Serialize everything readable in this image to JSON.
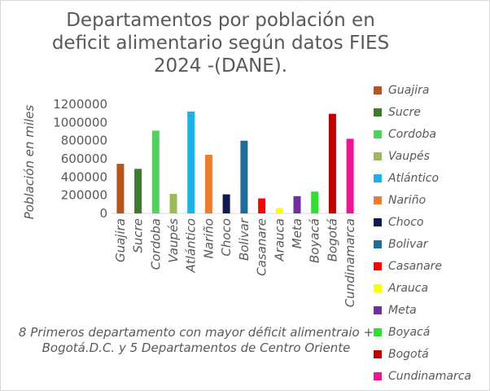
{
  "chart_data": {
    "type": "bar",
    "title": "Departamentos por población en deficit alimentario según datos FIES 2024 -(DANE).",
    "ylabel": "Población en miles",
    "xlabel": "",
    "ylim": [
      0,
      1200000
    ],
    "yticks": [
      0,
      200000,
      400000,
      600000,
      800000,
      1000000,
      1200000
    ],
    "ytick_labels": [
      "0",
      "200000",
      "400000",
      "600000",
      "800000",
      "1000000",
      "1200000"
    ],
    "grid": false,
    "legend_position": "right",
    "categories": [
      "Guajira",
      "Sucre",
      "Cordoba",
      "Vaupés",
      "Atlántico",
      "Nariño",
      "Choco",
      "Bolivar",
      "Casanare",
      "Arauca",
      "Meta",
      "Boyacá",
      "Bogotá",
      "Cundinamarca"
    ],
    "values": [
      545000,
      490000,
      910000,
      215000,
      1120000,
      645000,
      210000,
      800000,
      165000,
      60000,
      190000,
      240000,
      1095000,
      820000
    ],
    "colors": [
      "#b5541c",
      "#3e7a2b",
      "#4fd35e",
      "#9bbb59",
      "#1fb0e8",
      "#ed7d31",
      "#0d1b4f",
      "#1c6c9c",
      "#ff0000",
      "#ffff00",
      "#7030a0",
      "#33dd33",
      "#c00000",
      "#ee1690"
    ],
    "annotation": "8 Primeros departamento con mayor déficit alimentraio + Bogotá.D.C. y 5 Departamentos de Centro Oriente"
  }
}
